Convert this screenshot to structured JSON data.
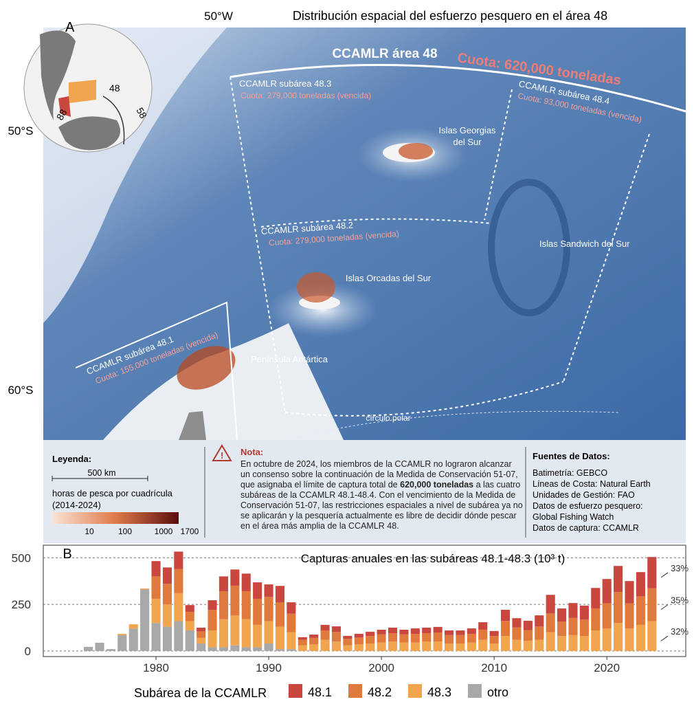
{
  "map": {
    "panel_label": "A",
    "longitude_label": "50°W",
    "title": "Distribución espacial del esfuerzo pesquero en el área 48",
    "latitude_labels": [
      "50°S",
      "60°S"
    ],
    "inset_labels": [
      "48",
      "88",
      "58"
    ],
    "area": {
      "name": "CCAMLR área 48",
      "quota": "Cuota: 620,000 toneladas"
    },
    "subareas": [
      {
        "name": "CCAMLR subárea 48.3",
        "quota": "Cuota: 279,000 toneladas (vencida)"
      },
      {
        "name": "CCAMLR subárea 48.4",
        "quota": "Cuota: 93,000 toneladas (vencida)"
      },
      {
        "name": "CCAMLR subárea 48.2",
        "quota": "Cuota: 279,000 toneladas (vencida)"
      },
      {
        "name": "CCAMLR subárea 48.1",
        "quota": "Cuota: 155,000 toneladas (vencida)"
      }
    ],
    "places": [
      "Islas Georgias",
      "del Sur",
      "Islas Sandwich del Sur",
      "Islas Orcadas del Sur",
      "Península Antártica",
      "círculo polar"
    ],
    "legend": {
      "title": "Leyenda:",
      "scale": "500 km",
      "caption": "horas de pesca por cuadrícula",
      "period": "(2014-2024)",
      "ticks": [
        "10",
        "100",
        "1000",
        "1700"
      ]
    },
    "note": {
      "title": "Nota:",
      "text_before": "En octubre de 2024, los miembros de la CCAMLR no lograron alcanzar un consenso sobre la continuación de la Medida de Conservación 51-07, que asignaba el límite de captura total de",
      "text_bold": "620,000 toneladas",
      "text_after": "a las cuatro subáreas de la CCAMLR 48.1-48.4. Con el vencimiento de la Medida de Conservación 51-07, las restricciones espaciales a nivel de subárea ya no se aplicarán y la pesquería actualmente es libre de decidir dónde pescar en el área más amplia de la CCAMLR 48."
    },
    "sources": {
      "title": "Fuentes de Datos:",
      "items": [
        "Batimetría: GEBCO",
        "Líneas de Costa: Natural Earth",
        "Unidades de Gestión: FAO",
        "Datos de esfuerzo pesquero:",
        "Global Fishing Watch",
        "Datos de captura: CCAMLR"
      ]
    }
  },
  "chart_data": {
    "type": "stacked_bar",
    "panel_label": "B",
    "title": "Capturas anuales en las subáreas 48.1-48.3 (10³ t)",
    "legend_title": "Subárea de la CCAMLR",
    "x": [
      1974,
      1975,
      1976,
      1977,
      1978,
      1979,
      1980,
      1981,
      1982,
      1983,
      1984,
      1985,
      1986,
      1987,
      1988,
      1989,
      1990,
      1991,
      1992,
      1993,
      1994,
      1995,
      1996,
      1997,
      1998,
      1999,
      2000,
      2001,
      2002,
      2003,
      2004,
      2005,
      2006,
      2007,
      2008,
      2009,
      2010,
      2011,
      2012,
      2013,
      2014,
      2015,
      2016,
      2017,
      2018,
      2019,
      2020,
      2021,
      2022,
      2023,
      2024
    ],
    "xlim": [
      1970,
      2027
    ],
    "xticks": [
      1980,
      1990,
      2000,
      2010,
      2020
    ],
    "ylim": [
      -30,
      560
    ],
    "yticks": [
      0,
      250,
      500
    ],
    "grid": true,
    "series": [
      {
        "name": "48.1",
        "color": "#c9473e",
        "values": [
          0,
          0,
          0,
          0,
          0,
          0,
          82,
          88,
          93,
          36,
          20,
          52,
          80,
          87,
          95,
          88,
          67,
          89,
          61,
          14,
          18,
          30,
          30,
          16,
          20,
          23,
          25,
          30,
          25,
          30,
          30,
          30,
          25,
          25,
          30,
          40,
          27,
          60,
          50,
          50,
          60,
          100,
          70,
          80,
          75,
          110,
          130,
          140,
          120,
          130,
          168
        ]
      },
      {
        "name": "48.2",
        "color": "#e07a3c",
        "values": [
          0,
          0,
          0,
          0,
          0,
          0,
          120,
          110,
          130,
          50,
          35,
          110,
          150,
          160,
          150,
          140,
          130,
          130,
          100,
          30,
          35,
          50,
          52,
          35,
          37,
          40,
          44,
          45,
          44,
          46,
          45,
          49,
          45,
          45,
          46,
          54,
          40,
          81,
          66,
          57,
          71,
          101,
          78,
          92,
          88,
          118,
          136,
          166,
          135,
          153,
          176
        ]
      },
      {
        "name": "48.3",
        "color": "#f0a54e",
        "values": [
          0,
          0,
          0,
          7,
          23,
          5,
          130,
          120,
          150,
          50,
          30,
          90,
          150,
          160,
          150,
          120,
          120,
          120,
          90,
          30,
          35,
          60,
          50,
          30,
          35,
          40,
          45,
          50,
          45,
          45,
          50,
          50,
          40,
          40,
          45,
          60,
          40,
          80,
          60,
          55,
          60,
          100,
          80,
          85,
          80,
          110,
          120,
          150,
          120,
          140,
          160
        ]
      },
      {
        "name": "otro",
        "color": "#a8a8a8",
        "values": [
          22,
          44,
          10,
          85,
          120,
          330,
          150,
          130,
          160,
          110,
          40,
          20,
          20,
          30,
          20,
          20,
          40,
          10,
          10,
          0,
          0,
          0,
          0,
          0,
          0,
          0,
          0,
          0,
          0,
          0,
          0,
          0,
          0,
          0,
          0,
          0,
          0,
          0,
          0,
          0,
          0,
          0,
          0,
          0,
          0,
          0,
          0,
          0,
          0,
          0,
          0
        ]
      }
    ],
    "annotations": [
      "33%",
      "35%",
      "32%"
    ]
  }
}
